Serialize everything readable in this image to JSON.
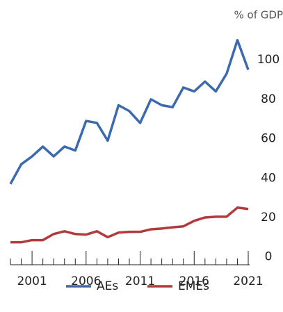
{
  "chart_data": {
    "type": "line",
    "y_label": "% of GDP",
    "x": [
      1999,
      2000,
      2001,
      2002,
      2003,
      2004,
      2005,
      2006,
      2007,
      2008,
      2009,
      2010,
      2011,
      2012,
      2013,
      2014,
      2015,
      2016,
      2017,
      2018,
      2019,
      2020,
      2021
    ],
    "series": [
      {
        "name": "AEs",
        "color": "#3b6aae",
        "values": [
          37,
          47,
          51,
          56,
          51,
          56,
          54,
          69,
          68,
          59,
          77,
          74,
          68,
          80,
          77,
          76,
          86,
          84,
          89,
          84,
          93,
          110,
          95
        ]
      },
      {
        "name": "EMEs",
        "color": "#b23a3a",
        "values": [
          7.4,
          7.4,
          8.5,
          8.5,
          11.6,
          13,
          11.6,
          11.3,
          13,
          10,
          12.3,
          12.7,
          12.7,
          14,
          14.4,
          15,
          15.5,
          18.3,
          20,
          20.4,
          20.4,
          25,
          24.3
        ]
      }
    ],
    "xlim": [
      1999,
      2021
    ],
    "xticks": [
      2001,
      2006,
      2011,
      2016,
      2021
    ],
    "ylim": [
      -4,
      117
    ],
    "yticks": [
      0,
      20,
      40,
      60,
      80,
      100
    ],
    "y_axis_side": "right",
    "grid": false
  }
}
